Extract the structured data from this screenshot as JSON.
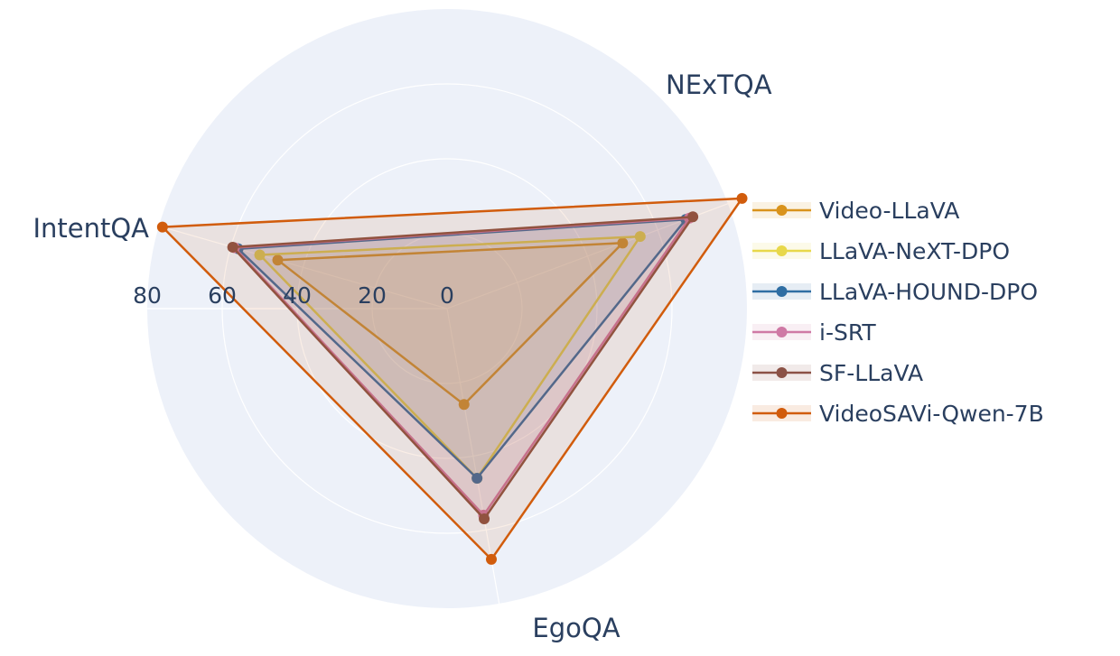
{
  "chart_data": {
    "type": "radar",
    "axes": [
      "NExTQA",
      "EgoQA",
      "IntentQA"
    ],
    "radial_ticks": [
      "0",
      "20",
      "40",
      "60",
      "80"
    ],
    "rmax": 80,
    "legend_position": "right",
    "series": [
      {
        "name": "Video-LLaVA",
        "color": "#d9931c",
        "values": [
          50.0,
          26.0,
          47.0
        ]
      },
      {
        "name": "LLaVA-NeXT-DPO",
        "color": "#e8d84a",
        "values": [
          55.0,
          46.0,
          52.0
        ]
      },
      {
        "name": "LLaVA-HOUND-DPO",
        "color": "#2f6ea3",
        "values": [
          68.0,
          46.0,
          58.0
        ]
      },
      {
        "name": "i-SRT",
        "color": "#cf79a5",
        "values": [
          69.0,
          56.0,
          59.0
        ]
      },
      {
        "name": "SF-LLaVA",
        "color": "#8b5246",
        "values": [
          70.0,
          57.0,
          59.5
        ]
      },
      {
        "name": "VideoSAVi-Qwen-7B",
        "color": "#d15c0c",
        "values": [
          84.0,
          68.0,
          79.0
        ]
      }
    ]
  }
}
